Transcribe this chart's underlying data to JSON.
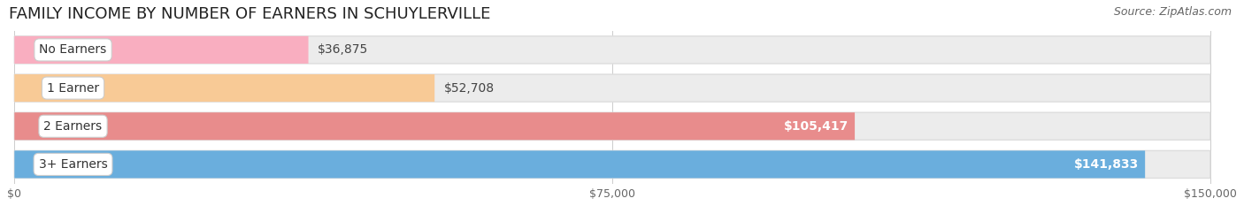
{
  "title": "FAMILY INCOME BY NUMBER OF EARNERS IN SCHUYLERVILLE",
  "source": "Source: ZipAtlas.com",
  "categories": [
    "No Earners",
    "1 Earner",
    "2 Earners",
    "3+ Earners"
  ],
  "values": [
    36875,
    52708,
    105417,
    141833
  ],
  "bar_colors": [
    "#f9aec0",
    "#f8ca96",
    "#e88c8c",
    "#6aaedd"
  ],
  "bar_bg_color": "#ececec",
  "bar_bg_border": "#dddddd",
  "label_colors": [
    "#333333",
    "#333333",
    "#ffffff",
    "#ffffff"
  ],
  "xmax": 150000,
  "xtick_values": [
    0,
    75000,
    150000
  ],
  "xtick_labels": [
    "$0",
    "$75,000",
    "$150,000"
  ],
  "background_color": "#ffffff",
  "title_fontsize": 13,
  "source_fontsize": 9,
  "label_fontsize": 10,
  "value_fontsize": 10
}
